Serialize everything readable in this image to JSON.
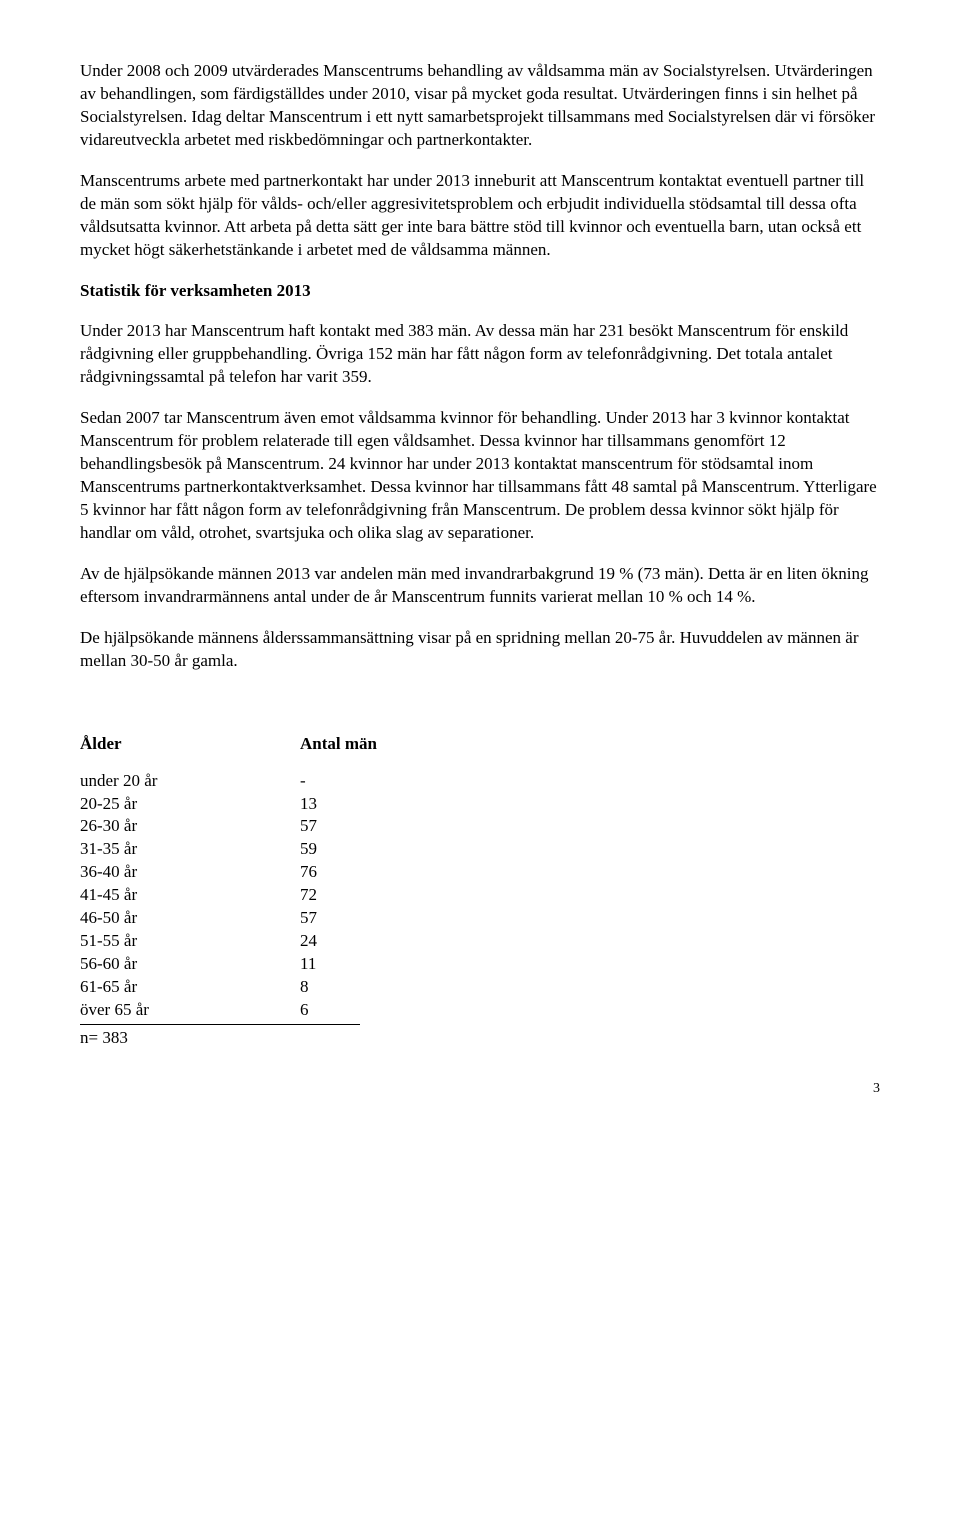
{
  "paragraphs": {
    "p1": "Under 2008 och 2009 utvärderades Manscentrums behandling av våldsamma män av Socialstyrelsen. Utvärderingen av behandlingen, som färdigställdes under 2010, visar på mycket goda resultat. Utvärderingen finns i sin helhet på Socialstyrelsen. Idag deltar Manscentrum i ett nytt samarbetsprojekt tillsammans med Socialstyrelsen där vi försöker vidareutveckla arbetet med riskbedömningar och partnerkontakter.",
    "p2": "Manscentrums arbete med partnerkontakt har under 2013 inneburit att Manscentrum kontaktat eventuell partner till de män som sökt hjälp för vålds- och/eller aggresivitetsproblem och erbjudit individuella stödsamtal till dessa ofta våldsutsatta kvinnor. Att arbeta på detta sätt ger inte bara bättre stöd till kvinnor och eventuella barn, utan också ett mycket högt säkerhetstänkande i arbetet med de våldsamma männen.",
    "h1": "Statistik för verksamheten 2013",
    "p3": "Under 2013 har Manscentrum haft kontakt med 383 män. Av dessa män har 231 besökt Manscentrum för enskild rådgivning eller gruppbehandling. Övriga 152 män har fått någon form av telefonrådgivning. Det totala antalet rådgivningssamtal på telefon har varit 359.",
    "p4": "Sedan 2007 tar Manscentrum även emot våldsamma kvinnor för behandling. Under 2013 har 3 kvinnor kontaktat Manscentrum för problem relaterade till egen våldsamhet. Dessa kvinnor har tillsammans genomfört 12 behandlingsbesök på Manscentrum. 24 kvinnor har under 2013 kontaktat manscentrum för stödsamtal inom Manscentrums partnerkontaktverksamhet. Dessa kvinnor har tillsammans fått 48 samtal på Manscentrum. Ytterligare 5 kvinnor har fått någon form av telefonrådgivning från Manscentrum. De problem dessa kvinnor sökt hjälp för handlar om våld, otrohet, svartsjuka och olika slag av separationer.",
    "p5": "Av de hjälpsökande männen 2013 var andelen män med invandrarbakgrund 19 % (73 män). Detta är en liten ökning eftersom invandrarmännens antal under de år Manscentrum funnits varierat mellan 10 % och 14 %.",
    "p6": "De hjälpsökande männens ålderssammansättning visar på en spridning mellan 20-75 år. Huvuddelen av männen är mellan 30-50 år gamla."
  },
  "table": {
    "header_age": "Ålder",
    "header_count": "Antal män",
    "rows": [
      {
        "age": "under 20 år",
        "count": "-"
      },
      {
        "age": "20-25 år",
        "count": "13"
      },
      {
        "age": "26-30 år",
        "count": "57"
      },
      {
        "age": "31-35 år",
        "count": "59"
      },
      {
        "age": "36-40 år",
        "count": "76"
      },
      {
        "age": "41-45 år",
        "count": "72"
      },
      {
        "age": "46-50 år",
        "count": "57"
      },
      {
        "age": "51-55 år",
        "count": "24"
      },
      {
        "age": "56-60 år",
        "count": "11"
      },
      {
        "age": "61-65 år",
        "count": "8"
      },
      {
        "age": "över 65 år",
        "count": "6"
      }
    ],
    "total": "n= 383"
  },
  "page_number": "3"
}
